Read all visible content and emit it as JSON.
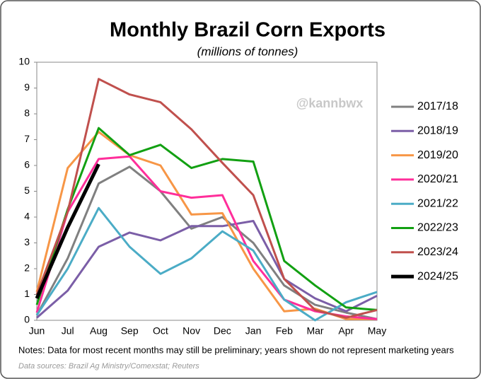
{
  "chart_data": {
    "type": "line",
    "title": "Monthly Brazil Corn Exports",
    "subtitle": "(millions  of  tonnes)",
    "watermark": "@kannbwx",
    "notes": "Notes: Data for most recent months may still be preliminary;  years shown  do not represent marketing  years",
    "source": "Data sources: Brazil Ag Ministry/Comexstat; Reuters",
    "categories": [
      "Jun",
      "Jul",
      "Aug",
      "Sep",
      "Oct",
      "Nov",
      "Dec",
      "Jan",
      "Feb",
      "Mar",
      "Apr",
      "May"
    ],
    "ylim": [
      0,
      10
    ],
    "yticks": [
      0,
      1,
      2,
      3,
      4,
      5,
      6,
      7,
      8,
      9,
      10
    ],
    "grid": false,
    "legend": "right",
    "series": [
      {
        "name": "2017/18",
        "color": "#808080",
        "width": 3,
        "values": [
          0.2,
          2.4,
          5.3,
          5.95,
          5.0,
          3.55,
          4.0,
          3.0,
          1.35,
          0.6,
          0.3,
          0.05
        ]
      },
      {
        "name": "2018/19",
        "color": "#7b5ea7",
        "width": 3,
        "values": [
          0.1,
          1.15,
          2.85,
          3.4,
          3.1,
          3.65,
          3.65,
          3.85,
          1.6,
          0.85,
          0.35,
          0.95
        ]
      },
      {
        "name": "2019/20",
        "color": "#f79646",
        "width": 3,
        "values": [
          1.1,
          5.9,
          7.3,
          6.4,
          6.0,
          4.1,
          4.15,
          2.0,
          0.35,
          0.45,
          0.05,
          0.05
        ]
      },
      {
        "name": "2020/21",
        "color": "#ff2e9a",
        "width": 3,
        "values": [
          0.3,
          4.2,
          6.25,
          6.35,
          5.0,
          4.75,
          4.85,
          2.3,
          0.8,
          0.35,
          0.15,
          0.05
        ]
      },
      {
        "name": "2021/22",
        "color": "#4bacc6",
        "width": 3,
        "values": [
          0.2,
          2.0,
          4.35,
          2.85,
          1.8,
          2.4,
          3.45,
          2.7,
          0.8,
          0.0,
          0.7,
          1.1
        ]
      },
      {
        "name": "2022/23",
        "color": "#12a012",
        "width": 3,
        "values": [
          0.6,
          4.3,
          7.45,
          6.4,
          6.8,
          5.9,
          6.25,
          6.15,
          2.3,
          1.35,
          0.5,
          0.4
        ]
      },
      {
        "name": "2023/24",
        "color": "#c0504d",
        "width": 3,
        "values": [
          1.0,
          4.2,
          9.35,
          8.75,
          8.45,
          7.4,
          6.1,
          4.85,
          1.6,
          0.4,
          0.1,
          0.4
        ]
      },
      {
        "name": "2024/25",
        "color": "#000000",
        "width": 5,
        "values": [
          0.85,
          3.6,
          6.05,
          null,
          null,
          null,
          null,
          null,
          null,
          null,
          null,
          null
        ]
      }
    ]
  }
}
